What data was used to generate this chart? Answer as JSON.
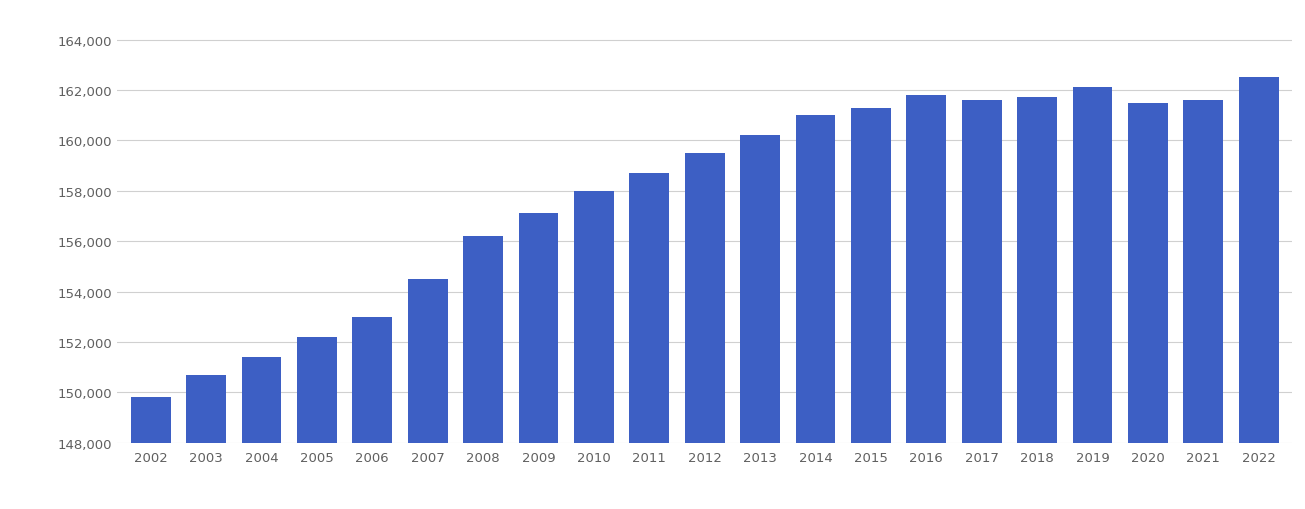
{
  "years": [
    2002,
    2003,
    2004,
    2005,
    2006,
    2007,
    2008,
    2009,
    2010,
    2011,
    2012,
    2013,
    2014,
    2015,
    2016,
    2017,
    2018,
    2019,
    2020,
    2021,
    2022
  ],
  "values": [
    149800,
    150700,
    151400,
    152200,
    153000,
    154500,
    156200,
    157100,
    158000,
    158700,
    159500,
    160200,
    161000,
    161300,
    161800,
    161600,
    161700,
    162100,
    161500,
    161600,
    162500
  ],
  "bar_color": "#3d5fc4",
  "background_color": "#ffffff",
  "ylim": [
    148000,
    165000
  ],
  "yticks": [
    148000,
    150000,
    152000,
    154000,
    156000,
    158000,
    160000,
    162000,
    164000
  ],
  "grid_color": "#d0d0d0",
  "tick_label_color": "#606060",
  "bar_width": 0.72,
  "figsize": [
    13.05,
    5.1
  ],
  "dpi": 100
}
